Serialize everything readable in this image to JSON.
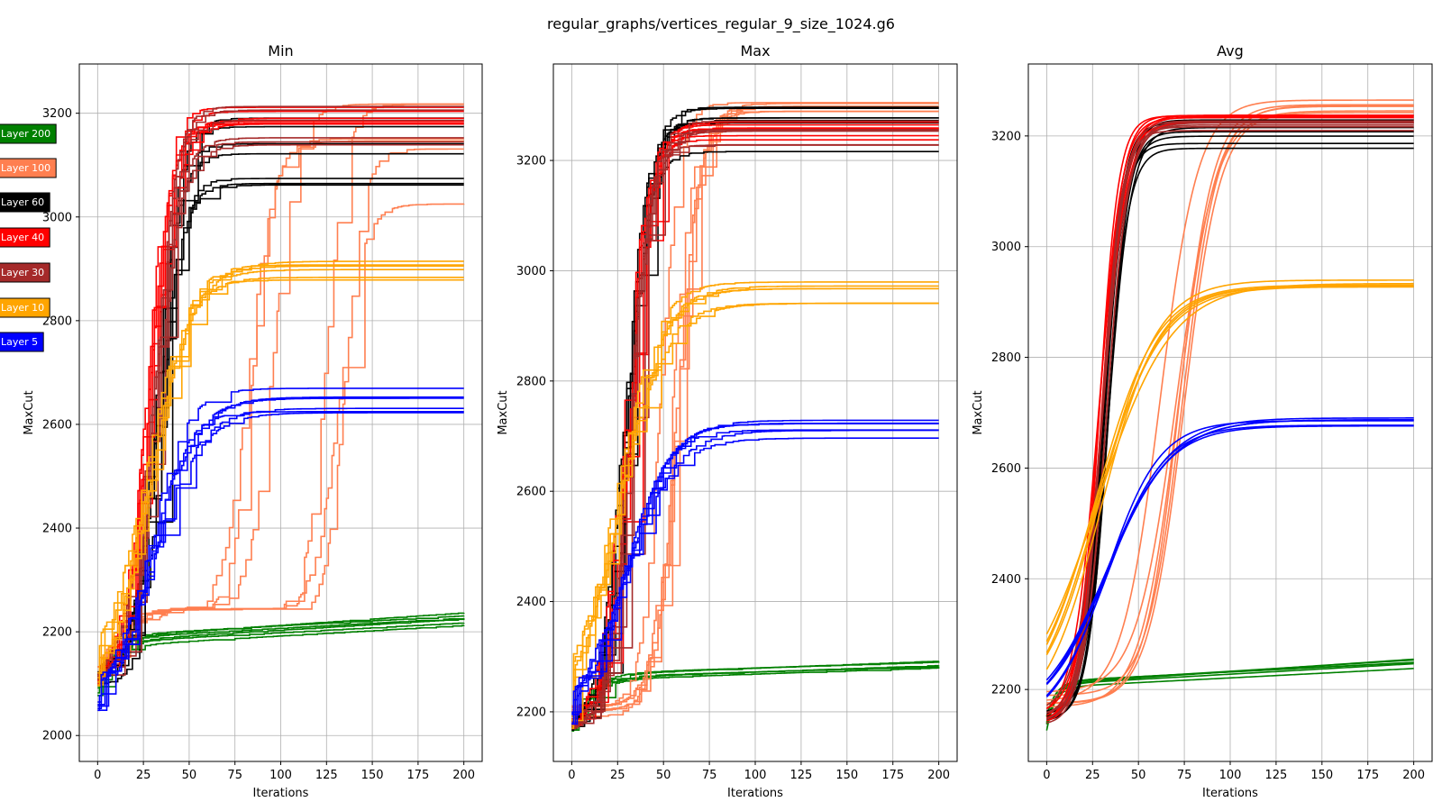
{
  "figure": {
    "suptitle": "regular_graphs/vertices_regular_9_size_1024.g6"
  },
  "legend": {
    "entries": [
      {
        "label": "Layer 200",
        "color": "#008000"
      },
      {
        "label": "Layer 100",
        "color": "#ff7f50"
      },
      {
        "label": "Layer 60",
        "color": "#000000"
      },
      {
        "label": "Layer 40",
        "color": "#ff0000"
      },
      {
        "label": "Layer 30",
        "color": "#a52a2a"
      },
      {
        "label": "Layer 10",
        "color": "#ffa500"
      },
      {
        "label": "Layer 5",
        "color": "#0000ff"
      }
    ]
  },
  "chart_data": [
    {
      "type": "line",
      "title": "Min",
      "xlabel": "Iterations",
      "ylabel": "MaxCut",
      "xlim": [
        -10,
        210
      ],
      "ylim": [
        1950,
        3295
      ],
      "xticks": [
        0,
        25,
        50,
        75,
        100,
        125,
        150,
        175,
        200
      ],
      "yticks": [
        2000,
        2200,
        2400,
        2600,
        2800,
        3000,
        3200
      ],
      "grid": true,
      "series": [
        {
          "layer": "Layer 200",
          "color": "#008000",
          "count": 6,
          "start": 2090,
          "final": 2222,
          "final_spread": 18,
          "midpoint": 8,
          "steepness": 3.5,
          "plateau_frac": 0.7,
          "step": true
        },
        {
          "layer": "Layer 100",
          "color": "#ff7f50",
          "count": 6,
          "start": 2120,
          "final": 3120,
          "final_spread": 120,
          "midpoint": 115,
          "midpoint_spread": 45,
          "steepness": 6,
          "plateau": 2235,
          "step": true
        },
        {
          "layer": "Layer 60",
          "color": "#000000",
          "count": 7,
          "start": 2110,
          "final": 3150,
          "final_spread": 90,
          "midpoint": 33,
          "steepness": 6,
          "step": true
        },
        {
          "layer": "Layer 40",
          "color": "#ff0000",
          "count": 7,
          "start": 2110,
          "final": 3198,
          "final_spread": 20,
          "midpoint": 28,
          "steepness": 6.5,
          "step": true
        },
        {
          "layer": "Layer 30",
          "color": "#a52a2a",
          "count": 6,
          "start": 2110,
          "final": 3175,
          "final_spread": 40,
          "midpoint": 31,
          "steepness": 6.5,
          "step": true
        },
        {
          "layer": "Layer 10",
          "color": "#ffa500",
          "count": 6,
          "start": 2110,
          "final": 2900,
          "final_spread": 25,
          "midpoint": 28,
          "steepness": 11,
          "step": true
        },
        {
          "layer": "Layer 5",
          "color": "#0000ff",
          "count": 6,
          "start": 2050,
          "final": 2645,
          "final_spread": 25,
          "midpoint": 30,
          "steepness": 11,
          "step": true
        }
      ]
    },
    {
      "type": "line",
      "title": "Max",
      "xlabel": "Iterations",
      "ylabel": "MaxCut",
      "xlim": [
        -10,
        210
      ],
      "ylim": [
        2110,
        3375
      ],
      "xticks": [
        0,
        25,
        50,
        75,
        100,
        125,
        150,
        175,
        200
      ],
      "yticks": [
        2200,
        2400,
        2600,
        2800,
        3000,
        3200
      ],
      "grid": true,
      "series": [
        {
          "layer": "Layer 200",
          "color": "#008000",
          "count": 5,
          "start": 2175,
          "final": 2270,
          "final_spread": 30,
          "midpoint": 10,
          "steepness": 3.5,
          "plateau_frac": 0.8,
          "step": true
        },
        {
          "layer": "Layer 100",
          "color": "#ff7f50",
          "count": 6,
          "start": 2200,
          "final": 3290,
          "final_spread": 25,
          "midpoint": 52,
          "midpoint_spread": 6,
          "steepness": 6,
          "step": true
        },
        {
          "layer": "Layer 60",
          "color": "#000000",
          "count": 7,
          "start": 2180,
          "final": 3260,
          "final_spread": 50,
          "midpoint": 30,
          "steepness": 6,
          "step": true
        },
        {
          "layer": "Layer 40",
          "color": "#ff0000",
          "count": 7,
          "start": 2180,
          "final": 3250,
          "final_spread": 25,
          "midpoint": 30,
          "steepness": 6,
          "step": true
        },
        {
          "layer": "Layer 30",
          "color": "#a52a2a",
          "count": 6,
          "start": 2180,
          "final": 3245,
          "final_spread": 30,
          "midpoint": 31,
          "steepness": 6,
          "step": true
        },
        {
          "layer": "Layer 10",
          "color": "#ffa500",
          "count": 6,
          "start": 2180,
          "final": 2960,
          "final_spread": 20,
          "midpoint": 24,
          "steepness": 12,
          "step": true
        },
        {
          "layer": "Layer 5",
          "color": "#0000ff",
          "count": 6,
          "start": 2190,
          "final": 2715,
          "final_spread": 20,
          "midpoint": 28,
          "steepness": 12,
          "step": true
        }
      ]
    },
    {
      "type": "line",
      "title": "Avg",
      "xlabel": "Iterations",
      "ylabel": "MaxCut",
      "xlim": [
        -10,
        210
      ],
      "ylim": [
        2070,
        3330
      ],
      "xticks": [
        0,
        25,
        50,
        75,
        100,
        125,
        150,
        175,
        200
      ],
      "yticks": [
        2200,
        2400,
        2600,
        2800,
        3000,
        3200
      ],
      "grid": true,
      "series": [
        {
          "layer": "Layer 200",
          "color": "#008000",
          "count": 6,
          "start": 2140,
          "final": 2245,
          "final_spread": 10,
          "midpoint": 5,
          "steepness": 5,
          "plateau_frac": 0.65,
          "step": false
        },
        {
          "layer": "Layer 100",
          "color": "#ff7f50",
          "count": 6,
          "start": 2180,
          "final": 3240,
          "final_spread": 40,
          "midpoint": 68,
          "midpoint_spread": 8,
          "steepness": 10,
          "step": false
        },
        {
          "layer": "Layer 60",
          "color": "#000000",
          "count": 7,
          "start": 2150,
          "final": 3210,
          "final_spread": 45,
          "midpoint": 32,
          "steepness": 6,
          "step": false
        },
        {
          "layer": "Layer 40",
          "color": "#ff0000",
          "count": 7,
          "start": 2150,
          "final": 3232,
          "final_spread": 10,
          "midpoint": 30,
          "steepness": 6,
          "step": false
        },
        {
          "layer": "Layer 30",
          "color": "#a52a2a",
          "count": 6,
          "start": 2150,
          "final": 3215,
          "final_spread": 20,
          "midpoint": 31,
          "steepness": 6,
          "step": false
        },
        {
          "layer": "Layer 10",
          "color": "#ffa500",
          "count": 6,
          "start": 2150,
          "final": 2928,
          "final_spread": 12,
          "midpoint": 28,
          "steepness": 18,
          "step": false
        },
        {
          "layer": "Layer 5",
          "color": "#0000ff",
          "count": 6,
          "start": 2130,
          "final": 2685,
          "final_spread": 12,
          "midpoint": 32,
          "steepness": 16,
          "step": false
        }
      ]
    }
  ]
}
